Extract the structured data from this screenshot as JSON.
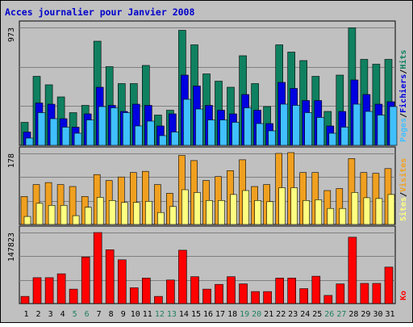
{
  "chart_data": [
    {
      "type": "bar",
      "title": "Acces journalier pour Janvier 2008",
      "categories": [
        "1",
        "2",
        "3",
        "4",
        "5",
        "6",
        "7",
        "8",
        "9",
        "10",
        "11",
        "12",
        "13",
        "14",
        "15",
        "16",
        "17",
        "18",
        "19",
        "20",
        "21",
        "22",
        "23",
        "24",
        "25",
        "26",
        "27",
        "28",
        "29",
        "30",
        "31"
      ],
      "weekend_days": [
        "5",
        "6",
        "12",
        "13",
        "19",
        "20",
        "26",
        "27"
      ],
      "y_tick_label": "973",
      "ylim": [
        0,
        973
      ],
      "legend": [
        "Pages",
        "Fichiers",
        "Hits"
      ],
      "series": [
        {
          "name": "Hits",
          "color": "#0f8060",
          "values": [
            190,
            570,
            500,
            400,
            270,
            330,
            860,
            650,
            510,
            510,
            660,
            250,
            290,
            950,
            830,
            590,
            530,
            480,
            740,
            510,
            320,
            830,
            770,
            700,
            570,
            280,
            580,
            970,
            710,
            670,
            710
          ]
        },
        {
          "name": "Fichiers",
          "color": "#0000e0",
          "values": [
            110,
            350,
            340,
            220,
            150,
            260,
            480,
            330,
            280,
            340,
            330,
            160,
            260,
            580,
            490,
            330,
            290,
            260,
            420,
            290,
            180,
            520,
            470,
            370,
            370,
            160,
            280,
            540,
            420,
            340,
            360
          ]
        },
        {
          "name": "Pages",
          "color": "#40c0ff",
          "values": [
            60,
            270,
            220,
            150,
            100,
            210,
            320,
            310,
            270,
            160,
            200,
            80,
            110,
            380,
            300,
            210,
            210,
            190,
            310,
            180,
            120,
            340,
            330,
            270,
            230,
            100,
            150,
            340,
            280,
            250,
            320
          ]
        }
      ]
    },
    {
      "type": "bar",
      "y_tick_label": "178",
      "ylim": [
        0,
        178
      ],
      "legend": [
        "Sites",
        "Visites"
      ],
      "series": [
        {
          "name": "Visites",
          "color": "#f0a020",
          "values": [
            70,
            100,
            105,
            100,
            95,
            70,
            125,
            110,
            119,
            130,
            133,
            100,
            78,
            173,
            160,
            110,
            120,
            135,
            162,
            95,
            100,
            178,
            180,
            130,
            130,
            85,
            90,
            165,
            130,
            128,
            140
          ]
        },
        {
          "name": "Sites",
          "color": "#ffff80",
          "values": [
            20,
            53,
            48,
            48,
            22,
            43,
            68,
            60,
            55,
            55,
            58,
            30,
            45,
            87,
            80,
            60,
            60,
            75,
            85,
            60,
            57,
            92,
            92,
            60,
            62,
            40,
            40,
            80,
            67,
            65,
            75
          ]
        }
      ]
    },
    {
      "type": "bar",
      "y_tick_label": "147823",
      "ylim": [
        0,
        147823
      ],
      "legend": [
        "Ko"
      ],
      "series": [
        {
          "name": "Ko",
          "color": "#ff0000",
          "values": [
            15000,
            54000,
            54000,
            62000,
            30000,
            97000,
            147823,
            112000,
            91000,
            33000,
            53000,
            15000,
            49000,
            111000,
            56000,
            30000,
            40000,
            56000,
            41000,
            25000,
            25000,
            53000,
            53000,
            31000,
            57000,
            17000,
            41000,
            138000,
            42000,
            42000,
            76000
          ]
        }
      ]
    }
  ]
}
